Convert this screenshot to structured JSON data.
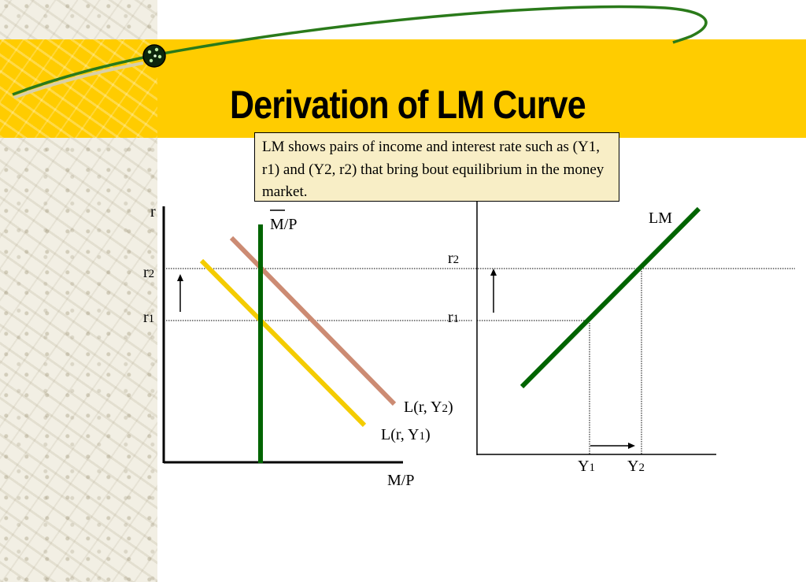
{
  "title": "Derivation of LM Curve",
  "note": "LM shows pairs of income and interest rate such as (Y1, r1) and (Y2, r2) that bring bout equilibrium in the money market.",
  "left_graph": {
    "y_axis_label": "r",
    "x_axis_label": "M/P",
    "supply_label": "M/P",
    "r2_main": "r",
    "r2_sub": "2",
    "r1_main": "r",
    "r1_sub": "1",
    "demand_y2_label": {
      "main": "L(r, Y",
      "sub": "2",
      "close": ")"
    },
    "demand_y1_label": {
      "main": "L(r, Y",
      "sub": "1",
      "close": ")"
    }
  },
  "right_graph": {
    "curve_label": "LM",
    "r2_main": "r",
    "r2_sub": "2",
    "r1_main": "r",
    "r1_sub": "1",
    "y1_main": "Y",
    "y1_sub": "1",
    "y2_main": "Y",
    "y2_sub": "2"
  },
  "colors": {
    "band": "#ffcc00",
    "money_supply": "#006400",
    "demand_y1": "#f4cc00",
    "demand_y2": "#cc8b73",
    "lm_curve": "#006400",
    "swoosh": "#2a7a1a"
  }
}
